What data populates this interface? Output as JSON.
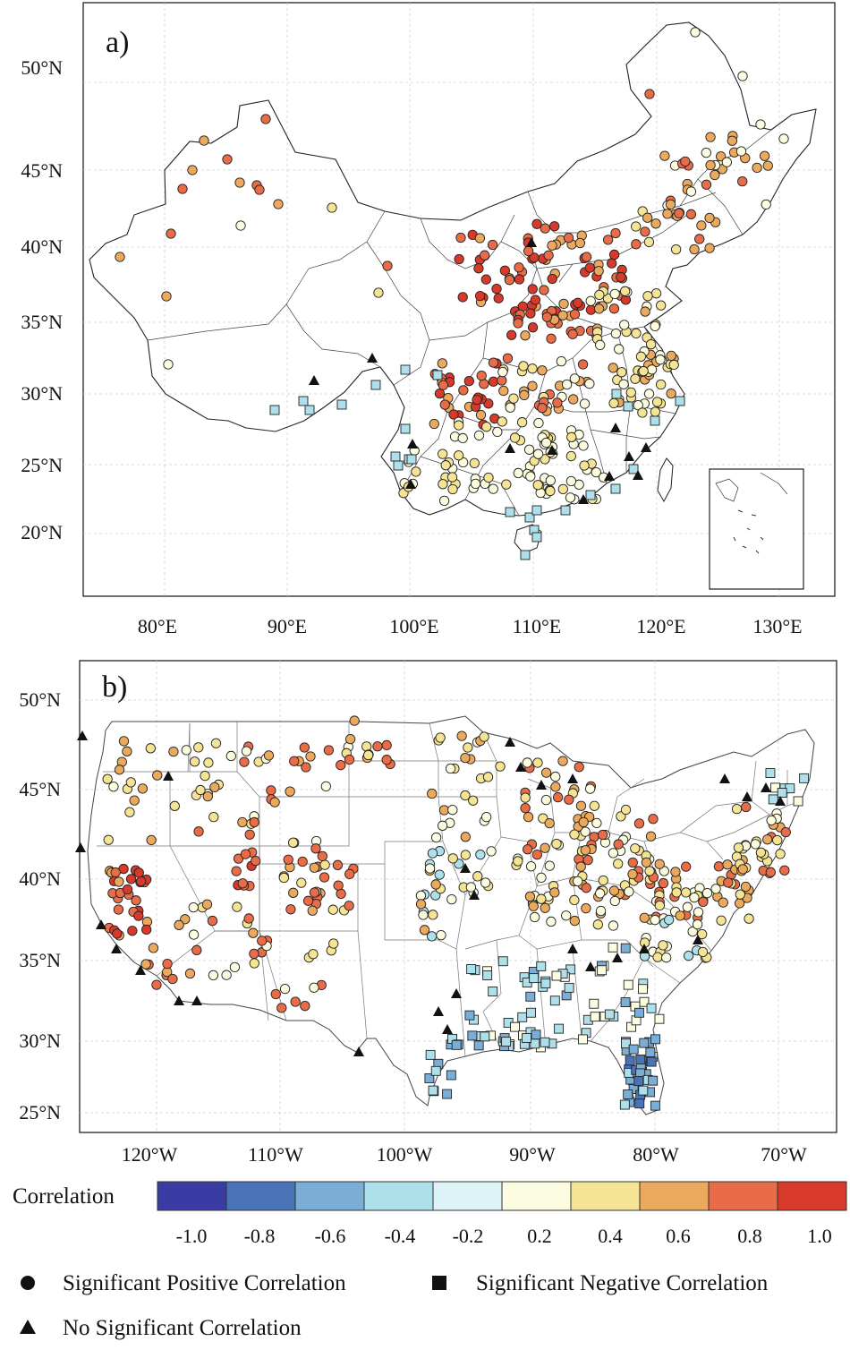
{
  "panel_a": {
    "label": "a)",
    "lat_labels": [
      "50°N",
      "45°N",
      "40°N",
      "35°N",
      "30°N",
      "25°N",
      "20°N"
    ],
    "lon_labels": [
      "80°E",
      "90°E",
      "100°E",
      "110°E",
      "120°E",
      "130°E"
    ]
  },
  "panel_b": {
    "label": "b)",
    "lat_labels": [
      "50°N",
      "45°N",
      "40°N",
      "35°N",
      "30°N",
      "25°N"
    ],
    "lon_labels": [
      "120°W",
      "110°W",
      "100°W",
      "90°W",
      "80°W",
      "70°W"
    ]
  },
  "colorbar": {
    "title": "Correlation",
    "tick_labels": [
      "-1.0",
      "-0.8",
      "-0.6",
      "-0.4",
      "-0.2",
      "0.2",
      "0.4",
      "0.6",
      "0.8",
      "1.0"
    ],
    "colors": [
      "#3a3ba3",
      "#4a74b8",
      "#7aaed6",
      "#ade0ea",
      "#def3f7",
      "#fcfce0",
      "#f5e493",
      "#eba95e",
      "#e86c48",
      "#d7392b"
    ]
  },
  "legend": {
    "circle": "Significant Positive Correlation",
    "square": "Significant Negative Correlation",
    "triangle": "No Significant Correlation"
  },
  "colors": {
    "red": "#d7392b",
    "orange_red": "#e86c48",
    "orange": "#eba95e",
    "yellow": "#f5e493",
    "pale": "#fcfce0",
    "light_blue": "#ade0ea",
    "mid_blue": "#7aaed6",
    "blue": "#4a74b8"
  }
}
